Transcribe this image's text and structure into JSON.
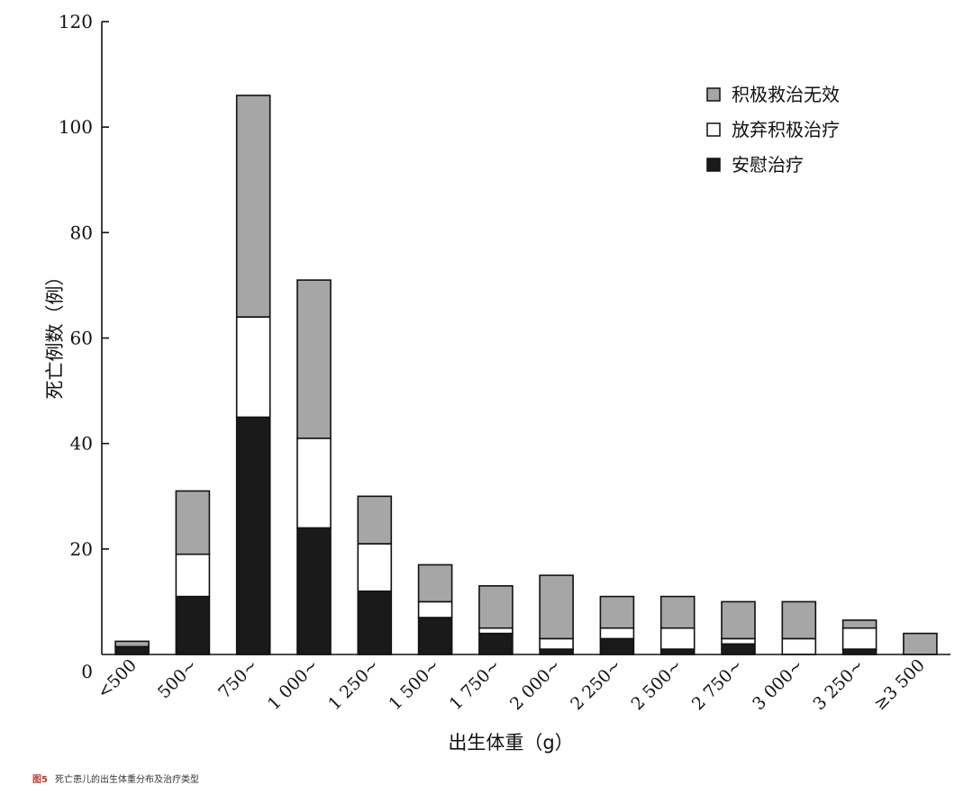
{
  "chart_data": {
    "type": "bar",
    "stacked": true,
    "xlabel": "出生体重（g）",
    "ylabel": "死亡例数（例）",
    "ylim": [
      0,
      120
    ],
    "y_ticks": [
      "0",
      "20",
      "40",
      "60",
      "80",
      "100",
      "120"
    ],
    "categories": [
      "<500",
      "500~",
      "750~",
      "1 000~",
      "1 250~",
      "1 500~",
      "1 750~",
      "2 000~",
      "2 250~",
      "2 500~",
      "2 750~",
      "3 000~",
      "3 250~",
      "≥3 500"
    ],
    "series": [
      {
        "name": "安慰治疗",
        "color": "#1a1a1a",
        "values": [
          1.5,
          11,
          45,
          24,
          12,
          7,
          4,
          1,
          3,
          1,
          2,
          0,
          1,
          0
        ]
      },
      {
        "name": "放弃积极治疗",
        "color": "#ffffff",
        "values": [
          0,
          8,
          19,
          17,
          9,
          3,
          1,
          2,
          2,
          4,
          1,
          3,
          4,
          0
        ]
      },
      {
        "name": "积极救治无效",
        "color": "#a6a6a6",
        "values": [
          1,
          12,
          42,
          30,
          9,
          7,
          8,
          12,
          6,
          6,
          7,
          7,
          1.5,
          4
        ]
      }
    ],
    "legend_order": [
      "积极救治无效",
      "放弃积极治疗",
      "安慰治疗"
    ],
    "legend_position": "top-right",
    "grid": false
  },
  "caption": {
    "figure": "图5",
    "text": "死亡患儿的出生体重分布及治疗类型"
  }
}
